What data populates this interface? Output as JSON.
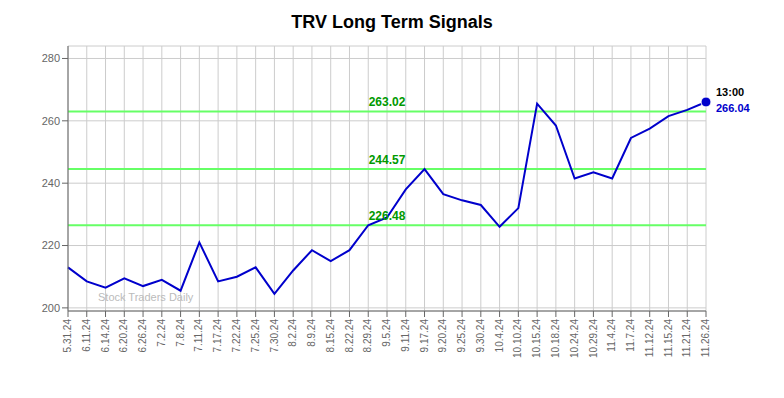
{
  "chart_data": {
    "type": "line",
    "title": "TRV Long Term Signals",
    "categories": [
      "5.31.24",
      "6.11.24",
      "6.14.24",
      "6.20.24",
      "6.26.24",
      "7.2.24",
      "7.8.24",
      "7.11.24",
      "7.17.24",
      "7.22.24",
      "7.25.24",
      "7.30.24",
      "8.2.24",
      "8.9.24",
      "8.15.24",
      "8.22.24",
      "8.29.24",
      "9.5.24",
      "9.11.24",
      "9.17.24",
      "9.20.24",
      "9.25.24",
      "9.30.24",
      "10.4.24",
      "10.10.24",
      "10.15.24",
      "10.18.24",
      "10.24.24",
      "10.29.24",
      "11.4.24",
      "11.7.24",
      "11.12.24",
      "11.15.24",
      "11.21.24",
      "11.26.24"
    ],
    "values": [
      213.0,
      208.5,
      206.5,
      209.5,
      207.0,
      209.0,
      205.5,
      221.0,
      208.5,
      210.0,
      213.0,
      204.5,
      212.0,
      218.5,
      215.0,
      218.5,
      226.5,
      229.0,
      238.0,
      244.5,
      236.5,
      234.5,
      233.0,
      226.0,
      232.0,
      265.5,
      258.5,
      241.5,
      243.5,
      241.5,
      254.5,
      257.5,
      261.5,
      263.5,
      266.04
    ],
    "color": "#0000cc",
    "ylim": [
      199,
      284
    ],
    "yticks": [
      200,
      220,
      240,
      260,
      280
    ],
    "grid": true,
    "hlines": [
      {
        "value": 226.48,
        "label": "226.48",
        "color": "#66ff66"
      },
      {
        "value": 244.57,
        "label": "244.57",
        "color": "#66ff66"
      },
      {
        "value": 263.02,
        "label": "263.02",
        "color": "#66ff66"
      }
    ],
    "annotations": [
      {
        "text": "Stock Traders Daily"
      },
      {
        "text": "13:00",
        "point": "11.26.24"
      },
      {
        "text": "266.04",
        "point": "11.26.24",
        "color": "#0000cc"
      }
    ]
  }
}
